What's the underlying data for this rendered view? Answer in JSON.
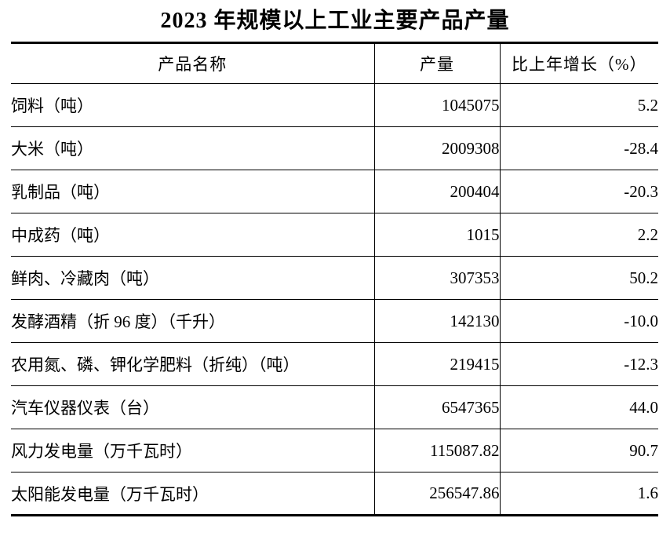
{
  "page": {
    "background_color": "#ffffff",
    "text_color": "#000000",
    "border_color": "#000000"
  },
  "title": "2023 年规模以上工业主要产品产量",
  "table": {
    "columns": [
      {
        "label": "产品名称"
      },
      {
        "label": "产量"
      },
      {
        "label": "比上年增长（%）"
      }
    ],
    "rows": [
      {
        "name": "饲料（吨）",
        "output": "1045075",
        "growth": "5.2"
      },
      {
        "name": "大米（吨）",
        "output": "2009308",
        "growth": "-28.4"
      },
      {
        "name": "乳制品（吨）",
        "output": "200404",
        "growth": "-20.3"
      },
      {
        "name": "中成药（吨）",
        "output": "1015",
        "growth": "2.2"
      },
      {
        "name": "鲜肉、冷藏肉（吨）",
        "output": "307353",
        "growth": "50.2"
      },
      {
        "name": "发酵酒精（折 96 度）（千升）",
        "output": "142130",
        "growth": "-10.0"
      },
      {
        "name": "农用氮、磷、钾化学肥料（折纯）（吨）",
        "output": "219415",
        "growth": "-12.3"
      },
      {
        "name": "汽车仪器仪表（台）",
        "output": "6547365",
        "growth": "44.0"
      },
      {
        "name": "风力发电量（万千瓦时）",
        "output": "115087.82",
        "growth": "90.7"
      },
      {
        "name": "太阳能发电量（万千瓦时）",
        "output": "256547.86",
        "growth": "1.6"
      }
    ]
  }
}
